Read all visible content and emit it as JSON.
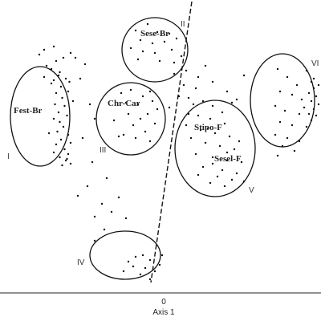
{
  "chart_data": {
    "type": "scatter",
    "xlabel": "Axis 1",
    "x_ticks": [
      "0"
    ],
    "grid": false,
    "groups": [
      {
        "id": "I",
        "roman": "I",
        "name": "Fest-Br"
      },
      {
        "id": "II",
        "roman": "II",
        "name": "Sese-Br"
      },
      {
        "id": "III",
        "roman": "III",
        "name": "Chr-Car"
      },
      {
        "id": "IV",
        "roman": "IV",
        "name": ""
      },
      {
        "id": "V",
        "roman": "V",
        "name": "Stipo-F",
        "name2": "Sesel-F"
      },
      {
        "id": "VI",
        "roman": "VI",
        "name": ""
      }
    ],
    "points": [
      [
        -4.5,
        4.2
      ],
      [
        -4.2,
        4.4
      ],
      [
        -4.7,
        3.7
      ],
      [
        -4.35,
        3.5
      ],
      [
        -4.6,
        3.0
      ],
      [
        -4.1,
        3.1
      ],
      [
        -4.3,
        2.6
      ],
      [
        -4.5,
        2.2
      ],
      [
        -4.0,
        2.3
      ],
      [
        -4.25,
        1.9
      ],
      [
        -4.55,
        1.5
      ],
      [
        -4.15,
        1.4
      ],
      [
        -4.4,
        1.0
      ],
      [
        -4.05,
        0.8
      ],
      [
        -4.35,
        0.4
      ],
      [
        -4.6,
        0.6
      ],
      [
        -4.2,
        0.1
      ],
      [
        -4.45,
        -0.2
      ],
      [
        -4.0,
        -0.4
      ],
      [
        -4.3,
        -0.7
      ],
      [
        -4.5,
        -1.0
      ],
      [
        -4.15,
        -1.3
      ],
      [
        -4.0,
        -1.6
      ],
      [
        -4.35,
        -1.8
      ],
      [
        -4.1,
        -2.0
      ],
      [
        -3.9,
        -2.2
      ],
      [
        -4.6,
        -1.5
      ],
      [
        -4.7,
        2.8
      ],
      [
        -3.8,
        1.7
      ],
      [
        -3.9,
        -0.9
      ],
      [
        -4.25,
        -2.3
      ],
      [
        -4.05,
        -1.9
      ],
      [
        -4.8,
        -0.3
      ],
      [
        -4.4,
        3.3
      ],
      [
        -3.95,
        2.9
      ],
      [
        -4.9,
        3.9
      ],
      [
        -5.0,
        4.9
      ],
      [
        -4.6,
        5.1
      ],
      [
        -3.9,
        4.7
      ],
      [
        -3.7,
        4.4
      ],
      [
        -3.3,
        4.0
      ],
      [
        -3.5,
        3.1
      ],
      [
        -3.1,
        1.5
      ],
      [
        -2.9,
        0.6
      ],
      [
        -3.4,
        -0.6
      ],
      [
        -3.0,
        -2.1
      ],
      [
        -5.2,
        4.6
      ],
      [
        -5.0,
        3.2
      ],
      [
        -1.2,
        6.1
      ],
      [
        -0.7,
        6.5
      ],
      [
        -0.3,
        6.0
      ],
      [
        0.2,
        5.9
      ],
      [
        -1.0,
        5.5
      ],
      [
        -0.5,
        5.3
      ],
      [
        0.0,
        5.4
      ],
      [
        0.5,
        5.6
      ],
      [
        -1.4,
        5.0
      ],
      [
        -0.9,
        4.8
      ],
      [
        -0.4,
        4.7
      ],
      [
        0.3,
        4.9
      ],
      [
        0.7,
        4.5
      ],
      [
        -0.2,
        4.2
      ],
      [
        -1.1,
        4.3
      ],
      [
        0.4,
        4.1
      ],
      [
        -1.8,
        2.2
      ],
      [
        -1.4,
        2.4
      ],
      [
        -0.9,
        2.0
      ],
      [
        -0.6,
        2.3
      ],
      [
        -1.6,
        1.6
      ],
      [
        -1.1,
        1.5
      ],
      [
        -0.5,
        1.7
      ],
      [
        -1.5,
        0.9
      ],
      [
        -1.0,
        0.6
      ],
      [
        -0.7,
        0.9
      ],
      [
        -1.3,
        0.2
      ],
      [
        -0.8,
        -0.2
      ],
      [
        -0.4,
        0.3
      ],
      [
        -1.7,
        -0.4
      ],
      [
        -1.2,
        -0.6
      ],
      [
        -0.6,
        -0.8
      ],
      [
        -2.1,
        0.5
      ],
      [
        -1.9,
        -0.5
      ],
      [
        -1.5,
        -8.3
      ],
      [
        -1.2,
        -8.0
      ],
      [
        -0.9,
        -7.9
      ],
      [
        -0.6,
        -8.2
      ],
      [
        -1.3,
        -8.6
      ],
      [
        -0.8,
        -8.7
      ],
      [
        -0.4,
        -8.9
      ],
      [
        -1.0,
        -9.1
      ],
      [
        -0.6,
        -9.4
      ],
      [
        -0.2,
        -8.5
      ],
      [
        -0.1,
        -7.9
      ],
      [
        -1.7,
        -8.9
      ],
      [
        -1.6,
        -5.6
      ],
      [
        -2.2,
        -5.2
      ],
      [
        -2.6,
        -4.7
      ],
      [
        -2.9,
        -5.5
      ],
      [
        -1.9,
        -4.3
      ],
      [
        -3.2,
        -3.6
      ],
      [
        -2.5,
        -6.3
      ],
      [
        -2.9,
        -7.0
      ],
      [
        -2.4,
        -3.1
      ],
      [
        -3.6,
        -4.2
      ],
      [
        1.2,
        1.5
      ],
      [
        1.6,
        1.7
      ],
      [
        2.0,
        1.4
      ],
      [
        2.4,
        1.0
      ],
      [
        1.0,
        0.9
      ],
      [
        1.4,
        0.8
      ],
      [
        1.9,
        0.6
      ],
      [
        2.5,
        0.3
      ],
      [
        0.9,
        0.2
      ],
      [
        1.5,
        -0.1
      ],
      [
        2.1,
        -0.3
      ],
      [
        2.7,
        -0.5
      ],
      [
        1.1,
        -0.6
      ],
      [
        1.7,
        -0.9
      ],
      [
        2.3,
        -1.1
      ],
      [
        2.9,
        -1.3
      ],
      [
        1.3,
        -1.6
      ],
      [
        2.0,
        -1.8
      ],
      [
        2.6,
        -2.0
      ],
      [
        3.2,
        -2.1
      ],
      [
        1.6,
        -2.4
      ],
      [
        2.4,
        -2.6
      ],
      [
        3.0,
        -2.8
      ],
      [
        2.2,
        -3.0
      ],
      [
        2.8,
        -3.2
      ],
      [
        1.9,
        -3.4
      ],
      [
        2.5,
        -3.6
      ],
      [
        3.3,
        -3.3
      ],
      [
        2.0,
        -2.2
      ],
      [
        1.4,
        -2.9
      ],
      [
        2.8,
        1.6
      ],
      [
        3.1,
        -0.8
      ],
      [
        1.8,
        0.0
      ],
      [
        2.6,
        -1.5
      ],
      [
        0.9,
        3.6
      ],
      [
        1.4,
        3.2
      ],
      [
        2.0,
        2.9
      ],
      [
        0.8,
        2.7
      ],
      [
        1.3,
        2.5
      ],
      [
        2.6,
        2.3
      ],
      [
        0.4,
        3.4
      ],
      [
        1.7,
        3.9
      ],
      [
        3.3,
        3.3
      ],
      [
        1.0,
        1.9
      ],
      [
        0.2,
        1.3
      ],
      [
        0.6,
        2.0
      ],
      [
        -0.3,
        1.2
      ],
      [
        3.0,
        1.8
      ],
      [
        4.7,
        3.7
      ],
      [
        5.1,
        3.2
      ],
      [
        5.5,
        2.7
      ],
      [
        4.8,
        2.3
      ],
      [
        5.3,
        2.1
      ],
      [
        5.7,
        1.8
      ],
      [
        4.6,
        1.4
      ],
      [
        5.0,
        1.1
      ],
      [
        5.6,
        0.9
      ],
      [
        4.8,
        0.4
      ],
      [
        5.3,
        0.2
      ],
      [
        5.9,
        0.1
      ],
      [
        4.6,
        -0.4
      ],
      [
        5.1,
        -0.6
      ],
      [
        5.6,
        -0.8
      ],
      [
        4.9,
        -1.1
      ],
      [
        5.4,
        -1.4
      ],
      [
        4.7,
        -1.7
      ],
      [
        6.1,
        2.9
      ],
      [
        6.2,
        2.5
      ],
      [
        6.0,
        2.2
      ],
      [
        6.3,
        2.0
      ],
      [
        6.1,
        1.7
      ],
      [
        6.4,
        1.5
      ],
      [
        6.2,
        1.2
      ],
      [
        6.0,
        0.9
      ],
      [
        6.3,
        0.8
      ],
      [
        6.1,
        0.5
      ],
      [
        6.4,
        2.7
      ],
      [
        5.9,
        3.6
      ],
      [
        6.2,
        3.1
      ],
      [
        5.8,
        1.3
      ]
    ]
  }
}
